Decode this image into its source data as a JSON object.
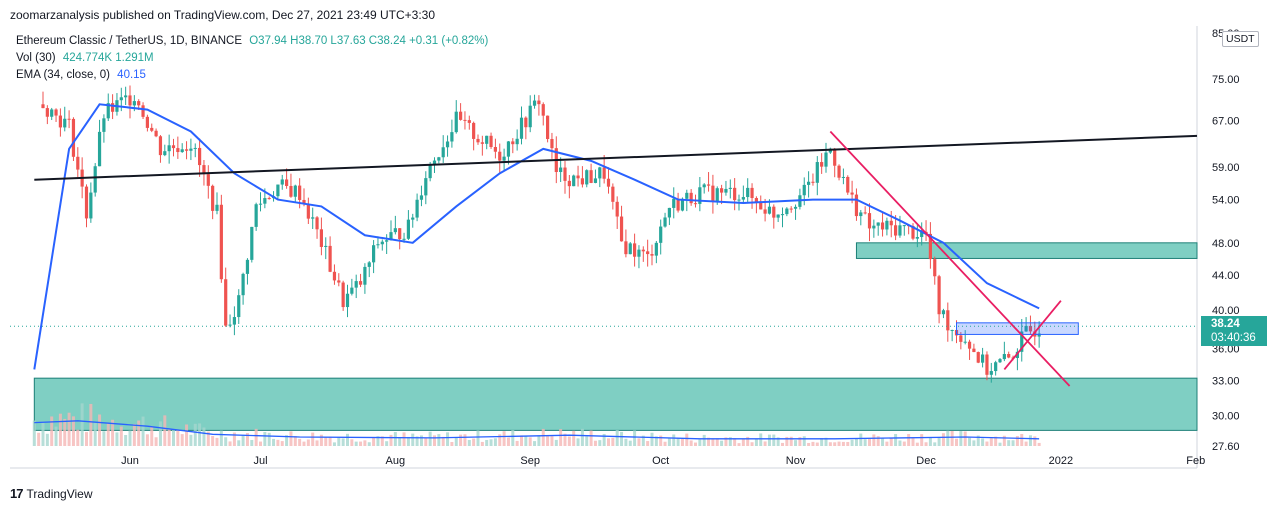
{
  "header": {
    "published": "zoomarzanalysis published on TradingView.com, Dec 27, 2021 23:49 UTC+3:30"
  },
  "legend": {
    "symbol": "Ethereum Classic / TetherUS, 1D, BINANCE",
    "ohlc": "O37.94 H38.70 L37.63 C38.24 +0.31 (+0.82%)",
    "vol_label": "Vol (30)",
    "vol_values": "424.774K  1.291M",
    "ema_label": "EMA (34, close, 0)",
    "ema_value": "40.15"
  },
  "price_axis": {
    "currency": "USDT",
    "last_price": "38.24",
    "countdown": "03:40:36"
  },
  "brand": {
    "logo": "17",
    "name": "TradingView"
  },
  "colors": {
    "up": "#26a69a",
    "down": "#ef5350",
    "ema": "#2962ff",
    "trend": "#e91e63",
    "zone": "#7fcfc3"
  },
  "chart_data": {
    "type": "candlestick",
    "y_scale": "log",
    "ylim": [
      27.6,
      85
    ],
    "y_ticks": [
      85,
      75,
      67,
      59,
      54,
      48,
      44,
      40,
      36,
      33,
      30,
      27.6
    ],
    "y_tick_labels": [
      "85.00",
      "75.00",
      "67.00",
      "59.00",
      "54.00",
      "48.00",
      "44.00",
      "40.00",
      "36.00",
      "33.00",
      "30.00",
      "27.60"
    ],
    "x_labels": [
      {
        "date": "2021-06-01",
        "label": "Jun"
      },
      {
        "date": "2021-07-01",
        "label": "Jul"
      },
      {
        "date": "2021-08-01",
        "label": "Aug"
      },
      {
        "date": "2021-09-01",
        "label": "Sep"
      },
      {
        "date": "2021-10-01",
        "label": "Oct"
      },
      {
        "date": "2021-11-01",
        "label": "Nov"
      },
      {
        "date": "2021-12-01",
        "label": "Dec"
      },
      {
        "date": "2022-01-01",
        "label": "2022"
      },
      {
        "date": "2022-02-01",
        "label": "Feb"
      }
    ],
    "close_anchors": [
      {
        "date": "2021-05-12",
        "close": 70
      },
      {
        "date": "2021-05-18",
        "close": 66
      },
      {
        "date": "2021-05-22",
        "close": 52
      },
      {
        "date": "2021-05-26",
        "close": 68
      },
      {
        "date": "2021-06-02",
        "close": 72
      },
      {
        "date": "2021-06-08",
        "close": 62
      },
      {
        "date": "2021-06-15",
        "close": 63
      },
      {
        "date": "2021-06-21",
        "close": 52
      },
      {
        "date": "2021-06-23",
        "close": 38
      },
      {
        "date": "2021-06-26",
        "close": 41
      },
      {
        "date": "2021-06-30",
        "close": 53
      },
      {
        "date": "2021-07-05",
        "close": 56
      },
      {
        "date": "2021-07-10",
        "close": 55
      },
      {
        "date": "2021-07-15",
        "close": 48
      },
      {
        "date": "2021-07-20",
        "close": 41
      },
      {
        "date": "2021-07-24",
        "close": 43
      },
      {
        "date": "2021-07-28",
        "close": 48
      },
      {
        "date": "2021-08-04",
        "close": 50
      },
      {
        "date": "2021-08-08",
        "close": 58
      },
      {
        "date": "2021-08-15",
        "close": 67
      },
      {
        "date": "2021-08-20",
        "close": 64
      },
      {
        "date": "2021-08-25",
        "close": 61
      },
      {
        "date": "2021-08-30",
        "close": 66
      },
      {
        "date": "2021-09-03",
        "close": 71
      },
      {
        "date": "2021-09-07",
        "close": 58
      },
      {
        "date": "2021-09-12",
        "close": 57
      },
      {
        "date": "2021-09-18",
        "close": 58
      },
      {
        "date": "2021-09-22",
        "close": 48
      },
      {
        "date": "2021-09-28",
        "close": 46
      },
      {
        "date": "2021-10-03",
        "close": 53
      },
      {
        "date": "2021-10-10",
        "close": 55
      },
      {
        "date": "2021-10-20",
        "close": 55
      },
      {
        "date": "2021-10-27",
        "close": 52
      },
      {
        "date": "2021-11-03",
        "close": 55
      },
      {
        "date": "2021-11-09",
        "close": 62
      },
      {
        "date": "2021-11-13",
        "close": 55
      },
      {
        "date": "2021-11-18",
        "close": 50
      },
      {
        "date": "2021-11-25",
        "close": 50
      },
      {
        "date": "2021-12-01",
        "close": 49
      },
      {
        "date": "2021-12-04",
        "close": 40
      },
      {
        "date": "2021-12-07",
        "close": 38
      },
      {
        "date": "2021-12-10",
        "close": 37
      },
      {
        "date": "2021-12-15",
        "close": 34
      },
      {
        "date": "2021-12-20",
        "close": 35
      },
      {
        "date": "2021-12-24",
        "close": 37.5
      },
      {
        "date": "2021-12-27",
        "close": 38.24
      }
    ],
    "ema": [
      {
        "date": "2021-05-10",
        "value": 34
      },
      {
        "date": "2021-05-18",
        "value": 62
      },
      {
        "date": "2021-05-25",
        "value": 70
      },
      {
        "date": "2021-06-05",
        "value": 69
      },
      {
        "date": "2021-06-15",
        "value": 65
      },
      {
        "date": "2021-06-25",
        "value": 58
      },
      {
        "date": "2021-07-05",
        "value": 54
      },
      {
        "date": "2021-07-15",
        "value": 53
      },
      {
        "date": "2021-07-25",
        "value": 49
      },
      {
        "date": "2021-08-05",
        "value": 48
      },
      {
        "date": "2021-08-15",
        "value": 53
      },
      {
        "date": "2021-08-25",
        "value": 58
      },
      {
        "date": "2021-09-04",
        "value": 62
      },
      {
        "date": "2021-09-15",
        "value": 60
      },
      {
        "date": "2021-09-25",
        "value": 57
      },
      {
        "date": "2021-10-05",
        "value": 54
      },
      {
        "date": "2021-10-20",
        "value": 53.5
      },
      {
        "date": "2021-11-05",
        "value": 54
      },
      {
        "date": "2021-11-15",
        "value": 54
      },
      {
        "date": "2021-11-25",
        "value": 51
      },
      {
        "date": "2021-12-05",
        "value": 48
      },
      {
        "date": "2021-12-15",
        "value": 43
      },
      {
        "date": "2021-12-27",
        "value": 40.15
      }
    ],
    "volume_profile": [
      {
        "date": "2021-05-10",
        "vol": 2.6
      },
      {
        "date": "2021-05-20",
        "vol": 2.8
      },
      {
        "date": "2021-06-05",
        "vol": 2.2
      },
      {
        "date": "2021-06-20",
        "vol": 1.3
      },
      {
        "date": "2021-07-10",
        "vol": 1.0
      },
      {
        "date": "2021-08-10",
        "vol": 0.9
      },
      {
        "date": "2021-09-10",
        "vol": 1.2
      },
      {
        "date": "2021-10-10",
        "vol": 0.8
      },
      {
        "date": "2021-11-10",
        "vol": 0.8
      },
      {
        "date": "2021-12-10",
        "vol": 1.0
      },
      {
        "date": "2021-12-27",
        "vol": 0.8
      }
    ],
    "drawings": {
      "black_trendline": {
        "from": {
          "date": "2021-05-10",
          "price": 57
        },
        "to": {
          "date": "2022-02-28",
          "price": 65
        }
      },
      "pink_down_line": {
        "from": {
          "date": "2021-11-09",
          "price": 65
        },
        "to": {
          "date": "2022-01-03",
          "price": 32.5
        }
      },
      "pink_up_line": {
        "from": {
          "date": "2021-12-19",
          "price": 34
        },
        "to": {
          "date": "2022-01-01",
          "price": 41
        }
      },
      "teal_zone_upper": {
        "from": "2021-11-15",
        "to": "2022-02-28",
        "top": 48,
        "bottom": 46
      },
      "teal_zone_lower": {
        "from": "2021-05-10",
        "to": "2022-02-28",
        "top": 33.2,
        "bottom": 28.8
      },
      "blue_box": {
        "from": "2021-12-08",
        "to": "2022-01-05",
        "top": 38.6,
        "bottom": 37.4
      },
      "last_price_line": 38.24
    }
  }
}
